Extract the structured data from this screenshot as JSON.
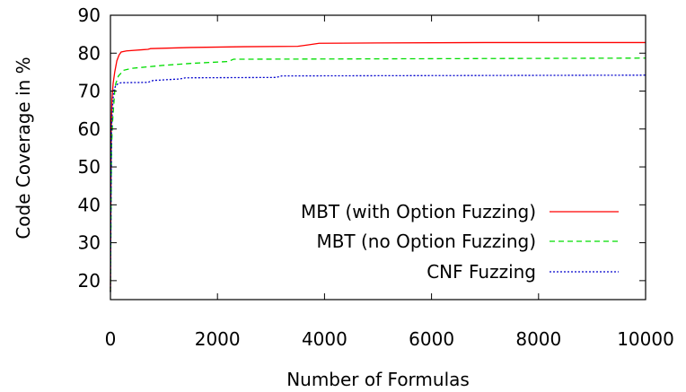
{
  "chart_data": {
    "type": "line",
    "title": "",
    "xlabel": "Number of Formulas",
    "ylabel": "Code Coverage in %",
    "xlim": [
      0,
      10000
    ],
    "ylim": [
      15,
      90
    ],
    "xticks": [
      0,
      2000,
      4000,
      6000,
      8000,
      10000
    ],
    "yticks": [
      20,
      30,
      40,
      50,
      60,
      70,
      80,
      90
    ],
    "grid": false,
    "legend_position": "bottom-right",
    "series": [
      {
        "name": "MBT (with Option Fuzzing)",
        "color": "#ff0000",
        "dash": "solid",
        "x": [
          0,
          15,
          30,
          50,
          80,
          120,
          160,
          200,
          300,
          600,
          700,
          750,
          1500,
          2500,
          3500,
          3700,
          3900,
          5000,
          7000,
          10000
        ],
        "y": [
          17,
          60,
          68,
          72,
          75,
          78,
          79.5,
          80.3,
          80.6,
          80.9,
          81.0,
          81.2,
          81.5,
          81.7,
          81.8,
          82.2,
          82.6,
          82.7,
          82.8,
          82.8
        ]
      },
      {
        "name": "MBT (no Option Fuzzing)",
        "color": "#00dd00",
        "dash": "dashed",
        "x": [
          0,
          10,
          20,
          40,
          60,
          80,
          100,
          150,
          250,
          400,
          1000,
          1500,
          2200,
          2300,
          5000,
          10000
        ],
        "y": [
          17,
          35,
          55,
          62,
          66,
          70,
          72,
          74,
          75.5,
          76,
          76.8,
          77.3,
          77.8,
          78.4,
          78.5,
          78.7
        ]
      },
      {
        "name": "CNF Fuzzing",
        "color": "#0000cc",
        "dash": "dotted",
        "x": [
          0,
          20,
          40,
          60,
          100,
          150,
          200,
          700,
          800,
          1300,
          1400,
          3100,
          3200,
          10000
        ],
        "y": [
          17,
          60,
          66,
          70,
          71.5,
          72.0,
          72.2,
          72.3,
          72.8,
          73.2,
          73.5,
          73.6,
          74.0,
          74.2
        ]
      }
    ]
  }
}
